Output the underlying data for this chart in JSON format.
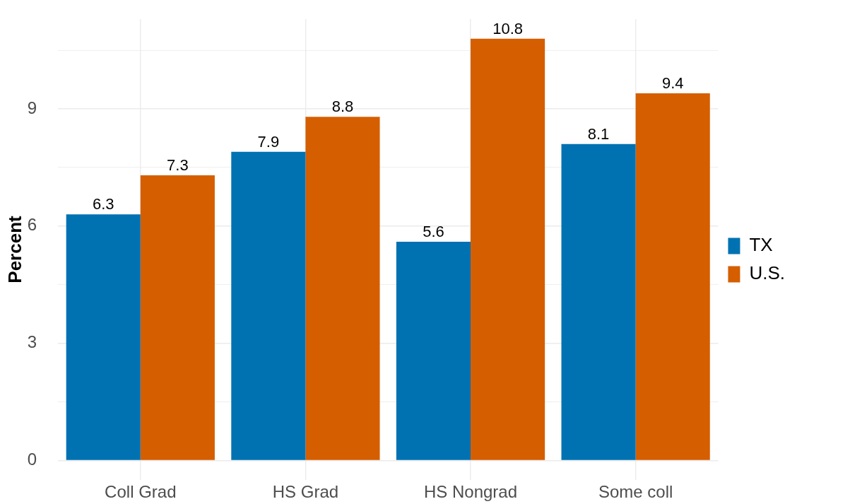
{
  "chart_data": {
    "type": "bar",
    "categories": [
      "Coll Grad",
      "HS Grad",
      "HS Nongrad",
      "Some coll"
    ],
    "series": [
      {
        "name": "TX",
        "color": "#0072b2",
        "values": [
          6.3,
          7.9,
          5.6,
          8.1
        ]
      },
      {
        "name": "U.S.",
        "color": "#d55e00",
        "values": [
          7.3,
          8.8,
          10.8,
          9.4
        ]
      }
    ],
    "ylabel": "Percent",
    "ylim": [
      -0.5,
      11.3
    ],
    "yticks": [
      0,
      {
        "value": 1.5,
        "label": null
      },
      3,
      {
        "value": 4.5,
        "label": null
      },
      6,
      {
        "value": 7.5,
        "label": null
      },
      9,
      {
        "value": 10.5,
        "label": null
      }
    ],
    "grid": true,
    "legend": "right",
    "data_labels": true
  }
}
